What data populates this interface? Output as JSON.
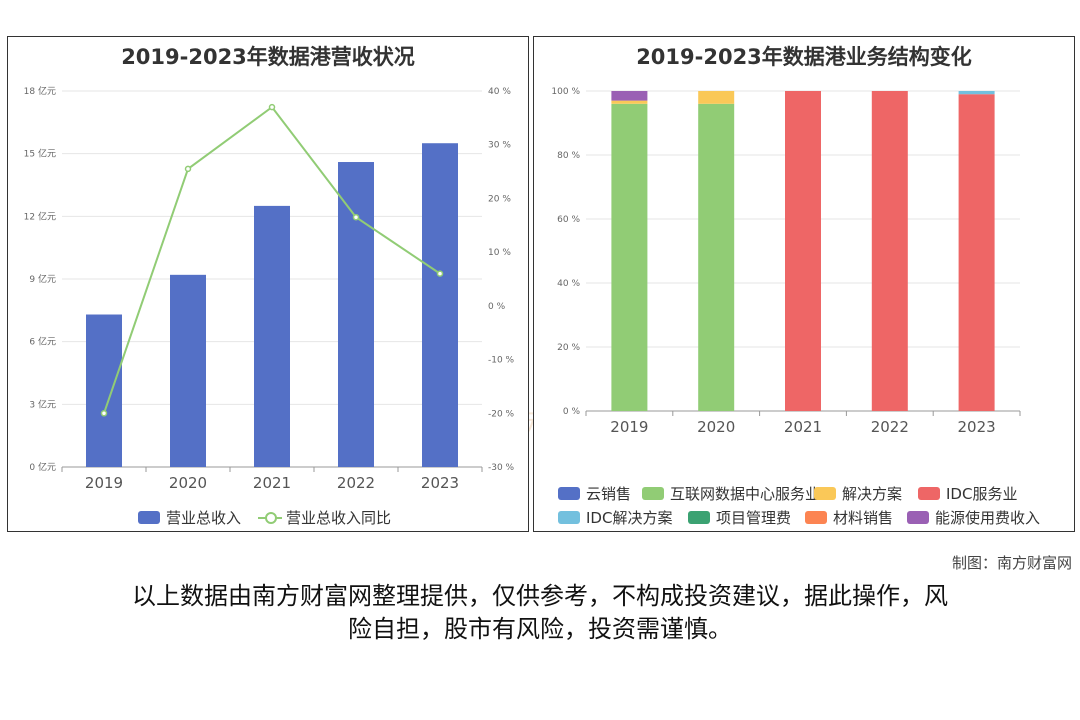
{
  "watermark": {
    "cn": "南方财富网",
    "en": "Southmoney.com"
  },
  "credit": "制图：南方财富网",
  "disclaimer_lines": [
    "以上数据由南方财富网整理提供，仅供参考，不构成投资建议，据此操作，风",
    "险自担，股市有风险，投资需谨慎。"
  ],
  "chart_data": [
    {
      "type": "bar",
      "title": "2019-2023年数据港营收状况",
      "categories": [
        "2019",
        "2020",
        "2021",
        "2022",
        "2023"
      ],
      "series": [
        {
          "name": "营业总收入",
          "type": "bar",
          "axis": "left",
          "values": [
            7.3,
            9.2,
            12.5,
            14.6,
            15.5
          ],
          "color": "#5470c6"
        },
        {
          "name": "营业总收入同比",
          "type": "line",
          "axis": "right",
          "values": [
            -20.0,
            25.5,
            37.0,
            16.5,
            6.0
          ],
          "color": "#91cc75"
        }
      ],
      "y_left": {
        "min": 0,
        "max": 18,
        "ticks": [
          "0 亿元",
          "3 亿元",
          "6 亿元",
          "9 亿元",
          "12 亿元",
          "15 亿元",
          "18 亿元"
        ]
      },
      "y_right": {
        "min": -30,
        "max": 40,
        "ticks": [
          "-30 %",
          "-20 %",
          "-10 %",
          "0 %",
          "10 %",
          "20 %",
          "30 %",
          "40 %"
        ]
      },
      "legend_position": "bottom",
      "grid": true
    },
    {
      "type": "bar",
      "stacked": true,
      "title": "2019-2023年数据港业务结构变化",
      "categories": [
        "2019",
        "2020",
        "2021",
        "2022",
        "2023"
      ],
      "series": [
        {
          "name": "云销售",
          "values": [
            0,
            0,
            0,
            0,
            0
          ],
          "color": "#5470c6"
        },
        {
          "name": "互联网数据中心服务业",
          "values": [
            96,
            96,
            0,
            0,
            0
          ],
          "color": "#91cc75"
        },
        {
          "name": "解决方案",
          "values": [
            1,
            4,
            0,
            0,
            0
          ],
          "color": "#fac858"
        },
        {
          "name": "IDC服务业",
          "values": [
            0,
            0,
            100,
            100,
            99
          ],
          "color": "#ee6666"
        },
        {
          "name": "IDC解决方案",
          "values": [
            0,
            0,
            0,
            0,
            1
          ],
          "color": "#73c0de"
        },
        {
          "name": "项目管理费",
          "values": [
            0,
            0,
            0,
            0,
            0
          ],
          "color": "#3ba272"
        },
        {
          "name": "材料销售",
          "values": [
            0,
            0,
            0,
            0,
            0
          ],
          "color": "#fc8452"
        },
        {
          "name": "能源使用费收入",
          "values": [
            3,
            0,
            0,
            0,
            0
          ],
          "color": "#9a60b4"
        }
      ],
      "y": {
        "min": 0,
        "max": 100,
        "ticks": [
          "0 %",
          "20 %",
          "40 %",
          "60 %",
          "80 %",
          "100 %"
        ]
      },
      "legend_position": "bottom",
      "grid": true
    }
  ]
}
